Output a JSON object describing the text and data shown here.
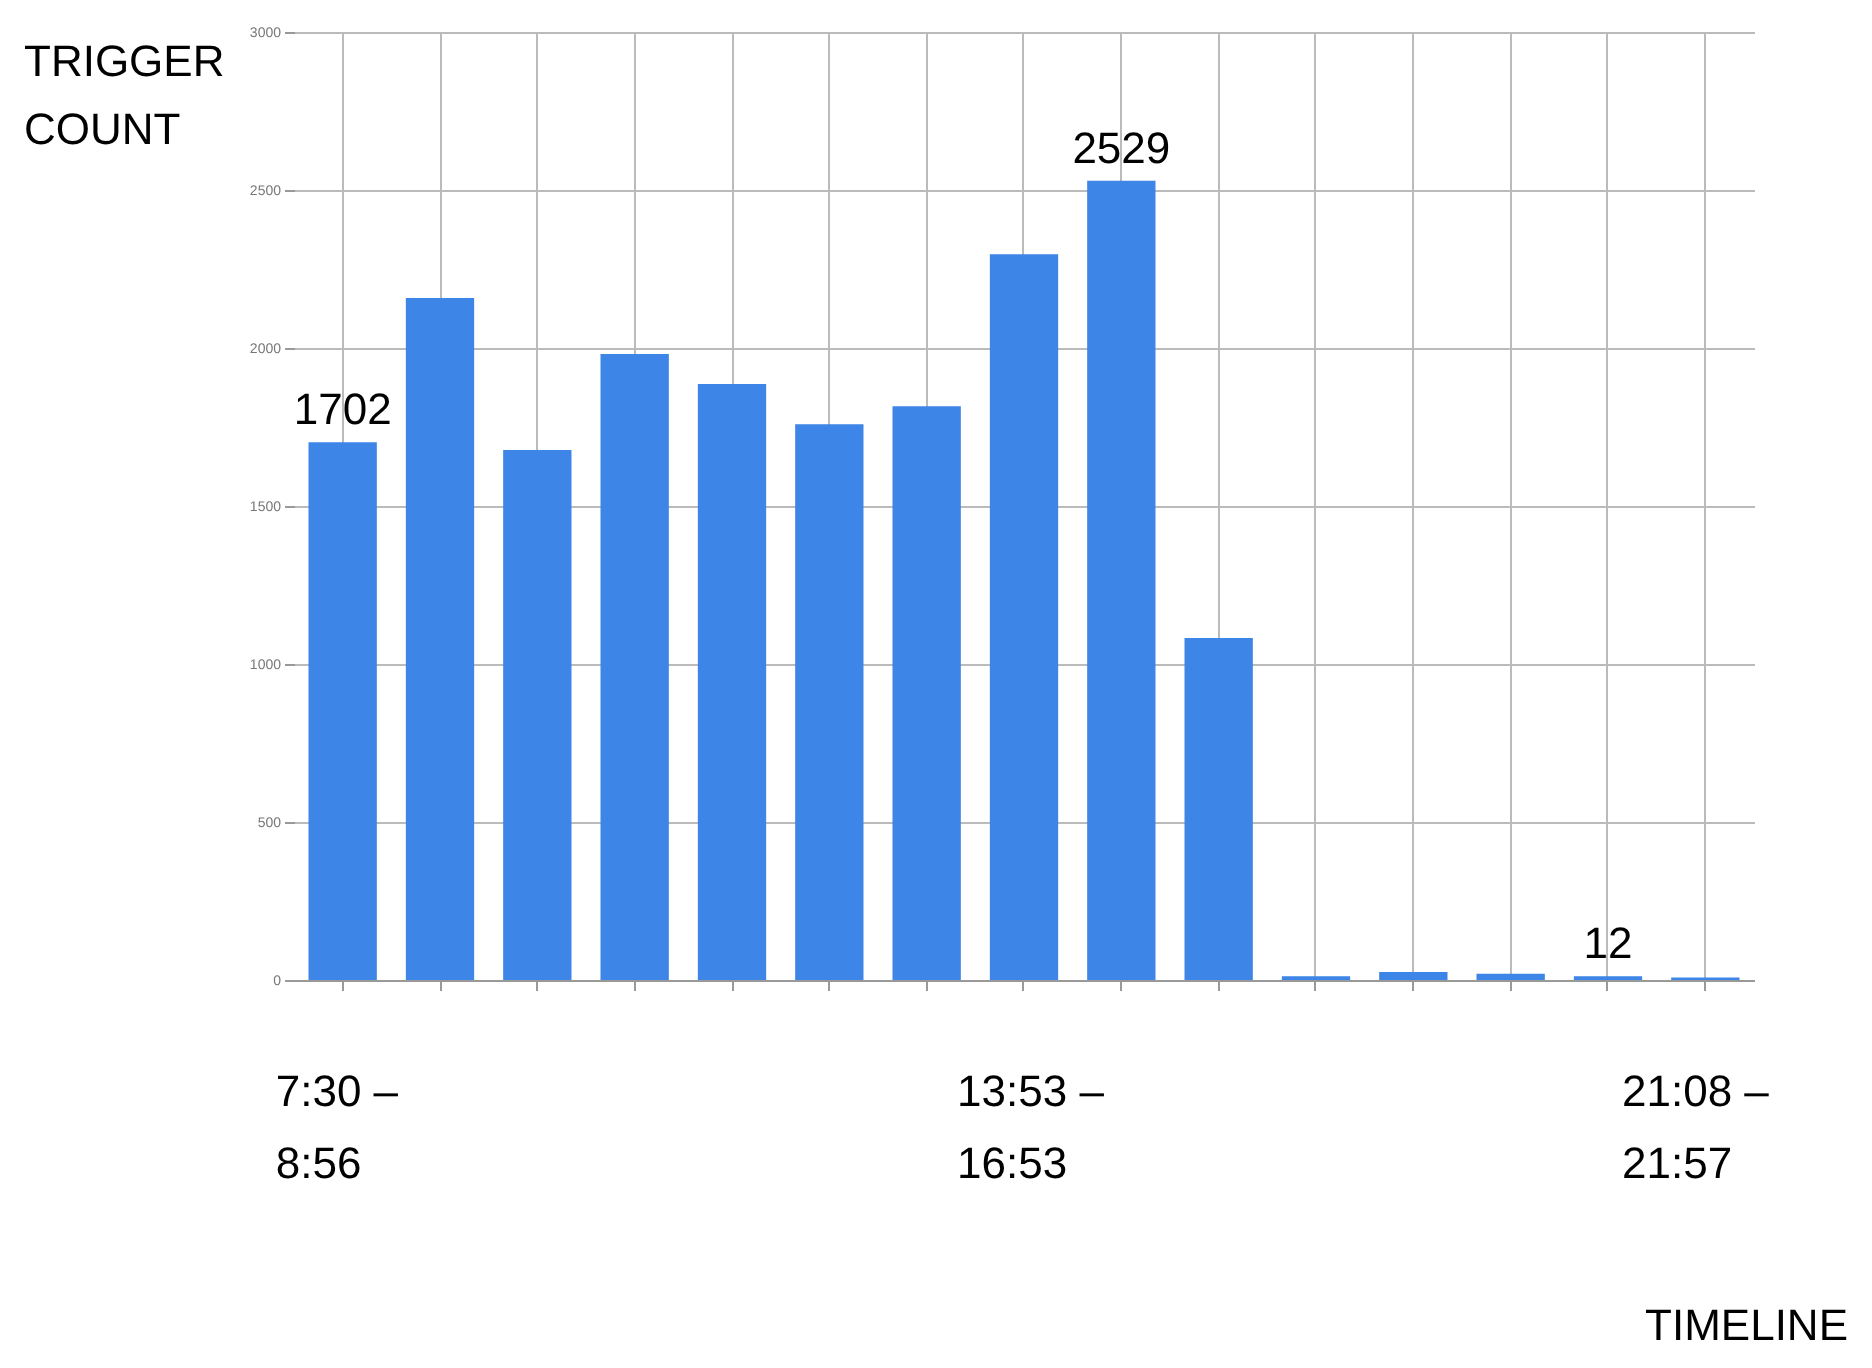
{
  "chart_data": {
    "type": "bar",
    "ylabel": "TRIGGER COUNT",
    "categories": [
      null,
      null,
      null,
      null,
      null,
      null,
      null,
      null,
      null,
      null,
      null,
      null,
      null,
      null,
      null
    ],
    "values": [
      1702,
      2158,
      1677,
      1981,
      1886,
      1759,
      1816,
      2297,
      2529,
      1082,
      12,
      25,
      20,
      12,
      8
    ],
    "color": "#3d85e6",
    "value_labels": [
      "1702",
      null,
      null,
      null,
      null,
      null,
      null,
      null,
      "2529",
      null,
      null,
      null,
      null,
      "12",
      null
    ],
    "ylim": [
      0,
      3000
    ],
    "yticks": [
      0,
      500,
      1000,
      1500,
      2000,
      2500,
      3000
    ],
    "grid": true,
    "annotations": [
      "7:30 – 8:56",
      "13:53 – 16:53",
      "21:08 – 21:57",
      "TIMELINE"
    ]
  }
}
